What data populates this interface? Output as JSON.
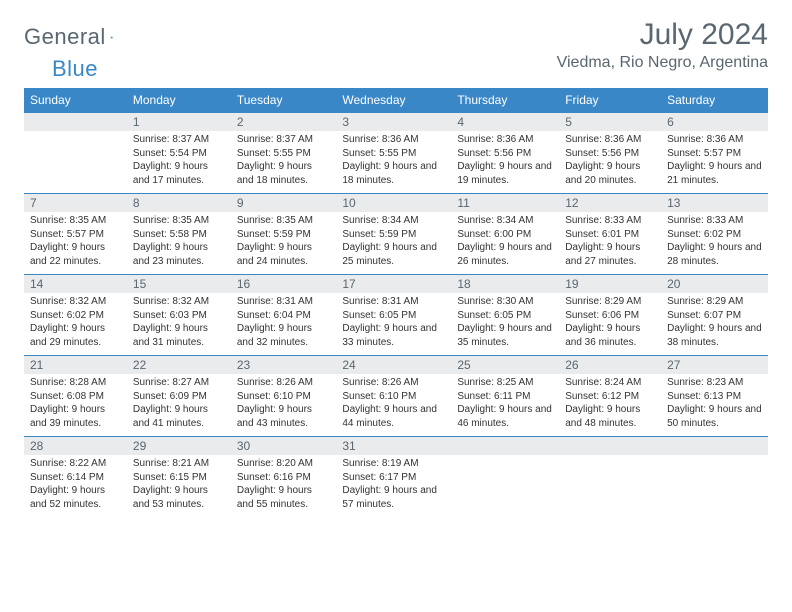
{
  "brand": {
    "name1": "General",
    "name2": "Blue"
  },
  "title": "July 2024",
  "location": "Viedma, Rio Negro, Argentina",
  "colors": {
    "accent": "#3a87c8",
    "header_bg": "#3a87c8",
    "daynum_bg": "#e9ebec",
    "text_muted": "#5a6770",
    "text": "#333333",
    "bg": "#ffffff"
  },
  "day_names": [
    "Sunday",
    "Monday",
    "Tuesday",
    "Wednesday",
    "Thursday",
    "Friday",
    "Saturday"
  ],
  "weeks": [
    [
      null,
      {
        "n": "1",
        "sr": "8:37 AM",
        "ss": "5:54 PM",
        "dl": "9 hours and 17 minutes."
      },
      {
        "n": "2",
        "sr": "8:37 AM",
        "ss": "5:55 PM",
        "dl": "9 hours and 18 minutes."
      },
      {
        "n": "3",
        "sr": "8:36 AM",
        "ss": "5:55 PM",
        "dl": "9 hours and 18 minutes."
      },
      {
        "n": "4",
        "sr": "8:36 AM",
        "ss": "5:56 PM",
        "dl": "9 hours and 19 minutes."
      },
      {
        "n": "5",
        "sr": "8:36 AM",
        "ss": "5:56 PM",
        "dl": "9 hours and 20 minutes."
      },
      {
        "n": "6",
        "sr": "8:36 AM",
        "ss": "5:57 PM",
        "dl": "9 hours and 21 minutes."
      }
    ],
    [
      {
        "n": "7",
        "sr": "8:35 AM",
        "ss": "5:57 PM",
        "dl": "9 hours and 22 minutes."
      },
      {
        "n": "8",
        "sr": "8:35 AM",
        "ss": "5:58 PM",
        "dl": "9 hours and 23 minutes."
      },
      {
        "n": "9",
        "sr": "8:35 AM",
        "ss": "5:59 PM",
        "dl": "9 hours and 24 minutes."
      },
      {
        "n": "10",
        "sr": "8:34 AM",
        "ss": "5:59 PM",
        "dl": "9 hours and 25 minutes."
      },
      {
        "n": "11",
        "sr": "8:34 AM",
        "ss": "6:00 PM",
        "dl": "9 hours and 26 minutes."
      },
      {
        "n": "12",
        "sr": "8:33 AM",
        "ss": "6:01 PM",
        "dl": "9 hours and 27 minutes."
      },
      {
        "n": "13",
        "sr": "8:33 AM",
        "ss": "6:02 PM",
        "dl": "9 hours and 28 minutes."
      }
    ],
    [
      {
        "n": "14",
        "sr": "8:32 AM",
        "ss": "6:02 PM",
        "dl": "9 hours and 29 minutes."
      },
      {
        "n": "15",
        "sr": "8:32 AM",
        "ss": "6:03 PM",
        "dl": "9 hours and 31 minutes."
      },
      {
        "n": "16",
        "sr": "8:31 AM",
        "ss": "6:04 PM",
        "dl": "9 hours and 32 minutes."
      },
      {
        "n": "17",
        "sr": "8:31 AM",
        "ss": "6:05 PM",
        "dl": "9 hours and 33 minutes."
      },
      {
        "n": "18",
        "sr": "8:30 AM",
        "ss": "6:05 PM",
        "dl": "9 hours and 35 minutes."
      },
      {
        "n": "19",
        "sr": "8:29 AM",
        "ss": "6:06 PM",
        "dl": "9 hours and 36 minutes."
      },
      {
        "n": "20",
        "sr": "8:29 AM",
        "ss": "6:07 PM",
        "dl": "9 hours and 38 minutes."
      }
    ],
    [
      {
        "n": "21",
        "sr": "8:28 AM",
        "ss": "6:08 PM",
        "dl": "9 hours and 39 minutes."
      },
      {
        "n": "22",
        "sr": "8:27 AM",
        "ss": "6:09 PM",
        "dl": "9 hours and 41 minutes."
      },
      {
        "n": "23",
        "sr": "8:26 AM",
        "ss": "6:10 PM",
        "dl": "9 hours and 43 minutes."
      },
      {
        "n": "24",
        "sr": "8:26 AM",
        "ss": "6:10 PM",
        "dl": "9 hours and 44 minutes."
      },
      {
        "n": "25",
        "sr": "8:25 AM",
        "ss": "6:11 PM",
        "dl": "9 hours and 46 minutes."
      },
      {
        "n": "26",
        "sr": "8:24 AM",
        "ss": "6:12 PM",
        "dl": "9 hours and 48 minutes."
      },
      {
        "n": "27",
        "sr": "8:23 AM",
        "ss": "6:13 PM",
        "dl": "9 hours and 50 minutes."
      }
    ],
    [
      {
        "n": "28",
        "sr": "8:22 AM",
        "ss": "6:14 PM",
        "dl": "9 hours and 52 minutes."
      },
      {
        "n": "29",
        "sr": "8:21 AM",
        "ss": "6:15 PM",
        "dl": "9 hours and 53 minutes."
      },
      {
        "n": "30",
        "sr": "8:20 AM",
        "ss": "6:16 PM",
        "dl": "9 hours and 55 minutes."
      },
      {
        "n": "31",
        "sr": "8:19 AM",
        "ss": "6:17 PM",
        "dl": "9 hours and 57 minutes."
      },
      null,
      null,
      null
    ]
  ],
  "labels": {
    "sunrise": "Sunrise: ",
    "sunset": "Sunset: ",
    "daylight": "Daylight: "
  }
}
